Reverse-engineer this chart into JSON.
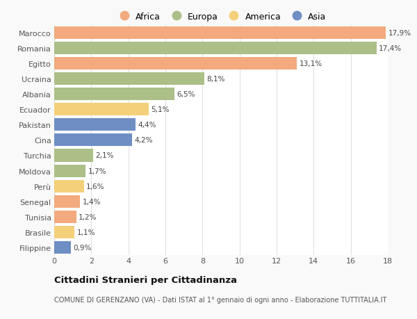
{
  "countries": [
    "Marocco",
    "Romania",
    "Egitto",
    "Ucraina",
    "Albania",
    "Ecuador",
    "Pakistan",
    "Cina",
    "Turchia",
    "Moldova",
    "Perù",
    "Senegal",
    "Tunisia",
    "Brasile",
    "Filippine"
  ],
  "values": [
    17.9,
    17.4,
    13.1,
    8.1,
    6.5,
    5.1,
    4.4,
    4.2,
    2.1,
    1.7,
    1.6,
    1.4,
    1.2,
    1.1,
    0.9
  ],
  "labels": [
    "17,9%",
    "17,4%",
    "13,1%",
    "8,1%",
    "6,5%",
    "5,1%",
    "4,4%",
    "4,2%",
    "2,1%",
    "1,7%",
    "1,6%",
    "1,4%",
    "1,2%",
    "1,1%",
    "0,9%"
  ],
  "continents": [
    "Africa",
    "Europa",
    "Africa",
    "Europa",
    "Europa",
    "America",
    "Asia",
    "Asia",
    "Europa",
    "Europa",
    "America",
    "Africa",
    "Africa",
    "America",
    "Asia"
  ],
  "colors": {
    "Africa": "#F2AA7E",
    "Europa": "#ABBF87",
    "America": "#F5D07A",
    "Asia": "#6E8EC4"
  },
  "legend_order": [
    "Africa",
    "Europa",
    "America",
    "Asia"
  ],
  "title": "Cittadini Stranieri per Cittadinanza",
  "subtitle": "COMUNE DI GERENZANO (VA) - Dati ISTAT al 1° gennaio di ogni anno - Elaborazione TUTTITALIA.IT",
  "xlim": [
    0,
    18
  ],
  "xticks": [
    0,
    2,
    4,
    6,
    8,
    10,
    12,
    14,
    16,
    18
  ],
  "background_color": "#f9f9f9",
  "bar_background": "#ffffff"
}
